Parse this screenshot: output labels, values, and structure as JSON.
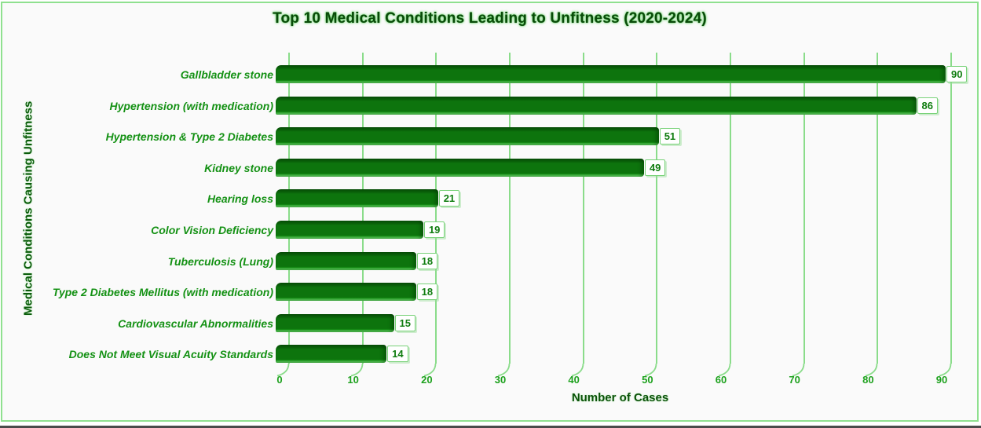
{
  "window": {
    "background_color": "#fafafa",
    "frame_border_color": "#8fe08f"
  },
  "chart_data": {
    "type": "bar",
    "orientation": "horizontal",
    "title": "Top 10 Medical Conditions Leading to Unfitness (2020-2024)",
    "xlabel": "Number of Cases",
    "ylabel": "Medical Conditions Causing Unfitness",
    "categories": [
      "Gallbladder stone",
      "Hypertension (with medication)",
      "Hypertension & Type 2 Diabetes",
      "Kidney stone",
      "Hearing loss",
      "Color Vision Deficiency",
      "Tuberculosis (Lung)",
      "Type 2 Diabetes Mellitus (with medication)",
      "Cardiovascular Abnormalities",
      "Does Not Meet Visual Acuity Standards"
    ],
    "values": [
      90,
      86,
      51,
      49,
      21,
      19,
      18,
      18,
      15,
      14
    ],
    "xlim": [
      0,
      90
    ],
    "xticks": [
      0,
      10,
      20,
      30,
      40,
      50,
      60,
      70,
      80,
      90
    ],
    "grid": "vertical-gridlines-on",
    "legend": "none",
    "data_labels": true,
    "colors": {
      "bar_fill": "#0d740d",
      "bar_top_shade": "#075107",
      "bar_bottom_highlight": "#4cbb4c",
      "gridline": "#8adc8a",
      "tick_text": "#1da11d",
      "category_text": "#149114",
      "title_text": "#0a4a0a",
      "value_text": "#0f7c0f",
      "value_box_border": "#79d279"
    }
  }
}
